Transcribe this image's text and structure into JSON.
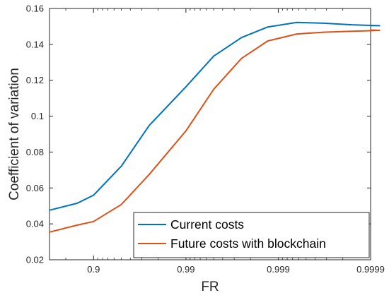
{
  "chart_data": {
    "type": "line",
    "title": "",
    "xlabel": "FR",
    "ylabel": "Coefficient of variation",
    "xscale": "log(1/(1-FR))",
    "x_ticks": [
      "0.9",
      "0.99",
      "0.999",
      "0.9999"
    ],
    "y_ticks": [
      "0.02",
      "0.04",
      "0.06",
      "0.08",
      "0.1",
      "0.12",
      "0.14",
      "0.16"
    ],
    "xlim": [
      0.7,
      0.9999
    ],
    "ylim": [
      0.02,
      0.16
    ],
    "grid": false,
    "legend_position": "bottom-right",
    "series": [
      {
        "name": "Current costs",
        "color": "#0072BD",
        "x": [
          0.7,
          0.85,
          0.9,
          0.95,
          0.975,
          0.99,
          0.995,
          0.9975,
          0.9987,
          0.99937,
          0.99968,
          0.99984,
          0.99992,
          0.9999
        ],
        "y": [
          0.0476,
          0.0515,
          0.056,
          0.0722,
          0.0948,
          0.1164,
          0.1335,
          0.1438,
          0.1497,
          0.1522,
          0.1518,
          0.1509,
          0.1504,
          0.1505
        ]
      },
      {
        "name": "Future costs with blockchain",
        "color": "#D95319",
        "x": [
          0.7,
          0.85,
          0.9,
          0.95,
          0.975,
          0.99,
          0.995,
          0.9975,
          0.9987,
          0.99937,
          0.99968,
          0.99984,
          0.99992,
          0.9999
        ],
        "y": [
          0.0354,
          0.0393,
          0.0413,
          0.0508,
          0.0675,
          0.0918,
          0.115,
          0.1322,
          0.1419,
          0.1458,
          0.1468,
          0.1473,
          0.1478,
          0.148
        ]
      }
    ]
  }
}
